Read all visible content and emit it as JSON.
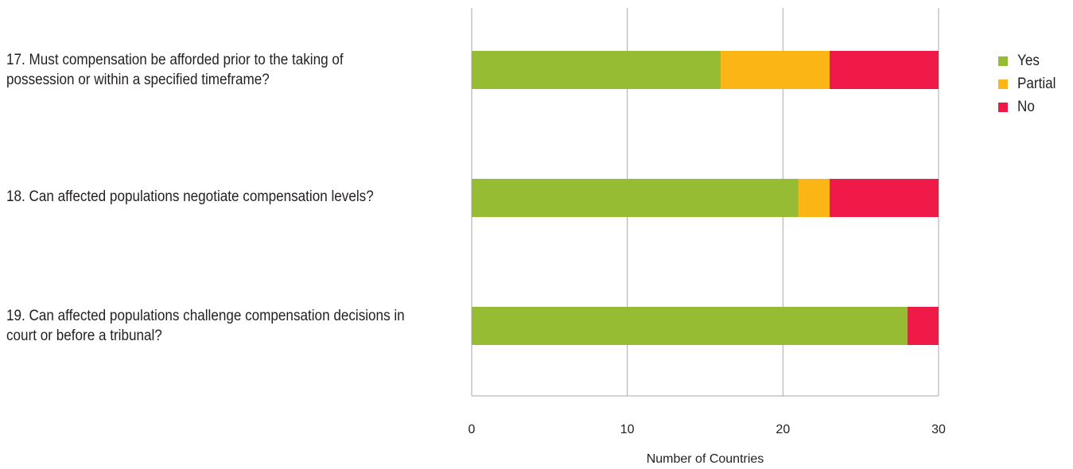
{
  "chart_data": {
    "type": "bar",
    "orientation": "horizontal",
    "stacked": true,
    "categories": [
      "17. Must compensation be afforded prior to the taking of possession or within a specified timeframe?",
      "18. Can affected populations negotiate compensation levels?",
      "19. Can affected populations challenge compensation decisions in court or before a tribunal?"
    ],
    "series": [
      {
        "name": "Yes",
        "color": "#96bc33",
        "values": [
          16,
          21,
          28
        ]
      },
      {
        "name": "Partial",
        "color": "#fbb616",
        "values": [
          7,
          2,
          0
        ]
      },
      {
        "name": "No",
        "color": "#ef1a48",
        "values": [
          7,
          7,
          2
        ]
      }
    ],
    "xlabel": "Number of Countries",
    "xlim": [
      0,
      30
    ],
    "xticks": [
      "0",
      "10",
      "20",
      "30"
    ],
    "grid": "vertical",
    "legend": "right"
  }
}
